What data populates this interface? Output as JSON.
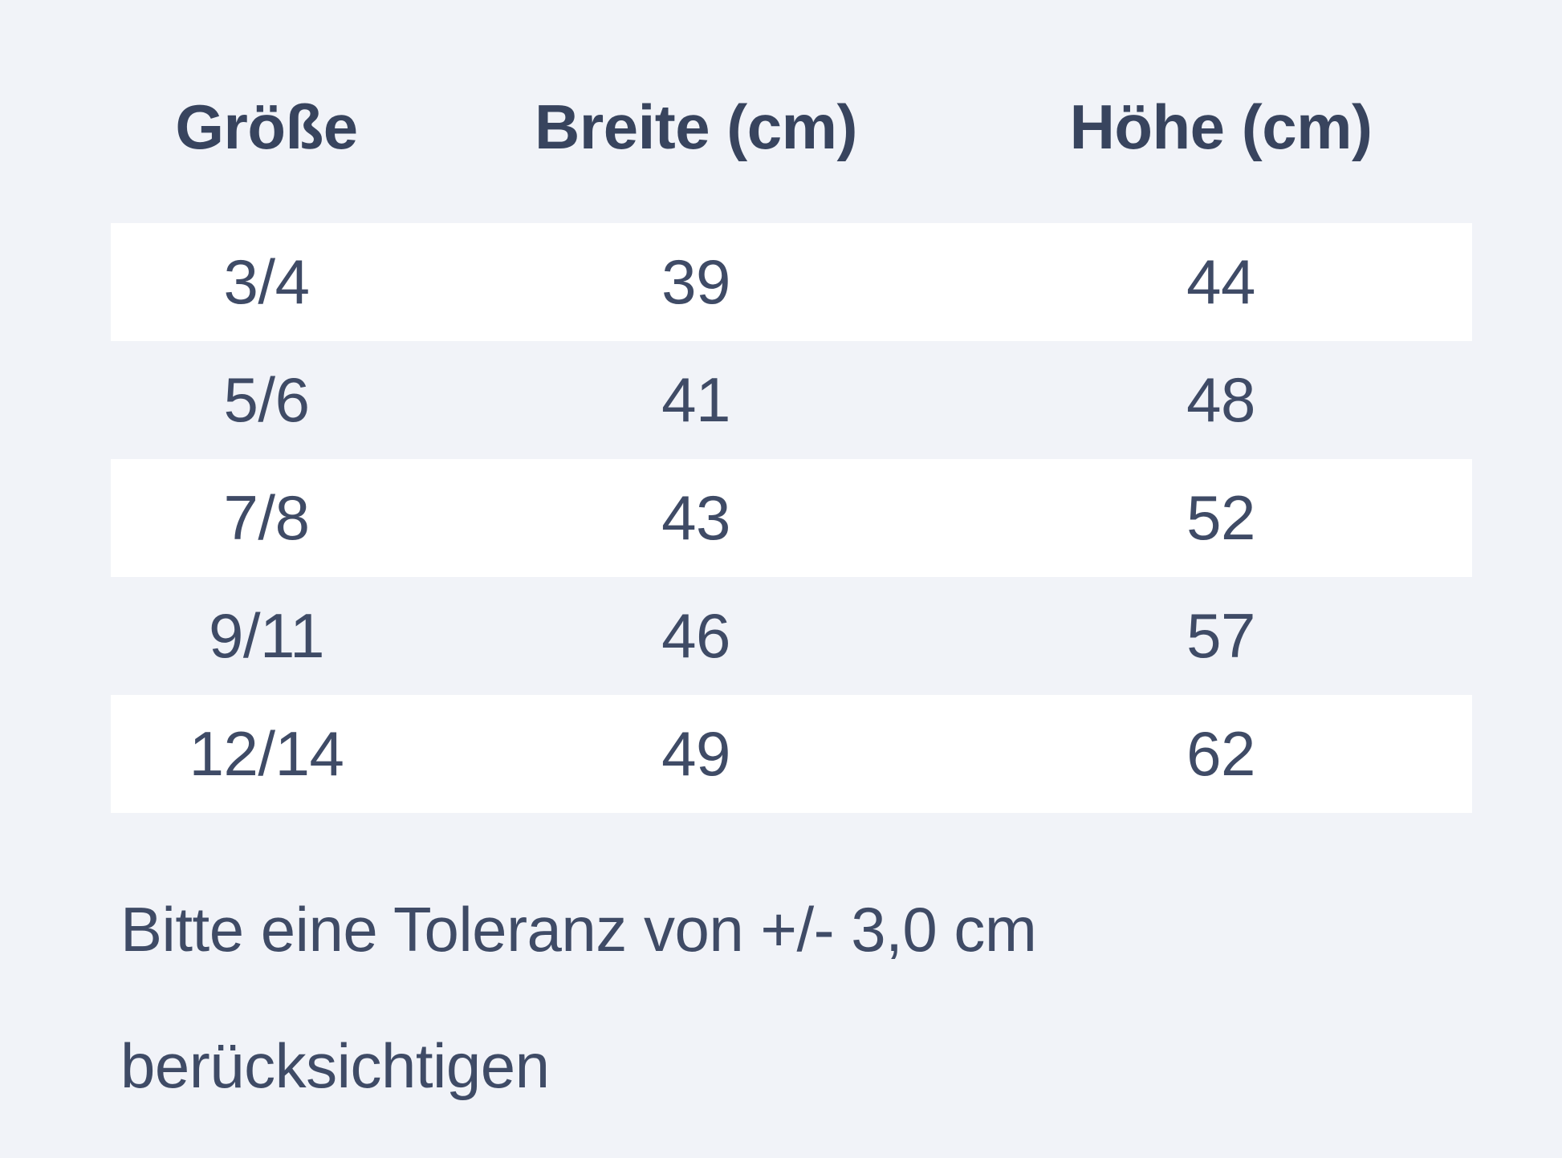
{
  "theme": {
    "bg": "#f1f3f8",
    "stripe": "#ffffff",
    "header-text": "#38445e",
    "body-text": "#3f4b66"
  },
  "size_chart": {
    "columns": {
      "size": "Größe",
      "width": "Breite (cm)",
      "height": "Höhe (cm)"
    },
    "rows": [
      {
        "size": "3/4",
        "breite": "39",
        "hoehe": "44"
      },
      {
        "size": "5/6",
        "breite": "41",
        "hoehe": "48"
      },
      {
        "size": "7/8",
        "breite": "43",
        "hoehe": "52"
      },
      {
        "size": "9/11",
        "breite": "46",
        "hoehe": "57"
      },
      {
        "size": "12/14",
        "breite": "49",
        "hoehe": "62"
      }
    ],
    "note": {
      "line1": "Bitte eine Toleranz von +/- 3,0 cm",
      "line2": "berücksichtigen"
    }
  }
}
